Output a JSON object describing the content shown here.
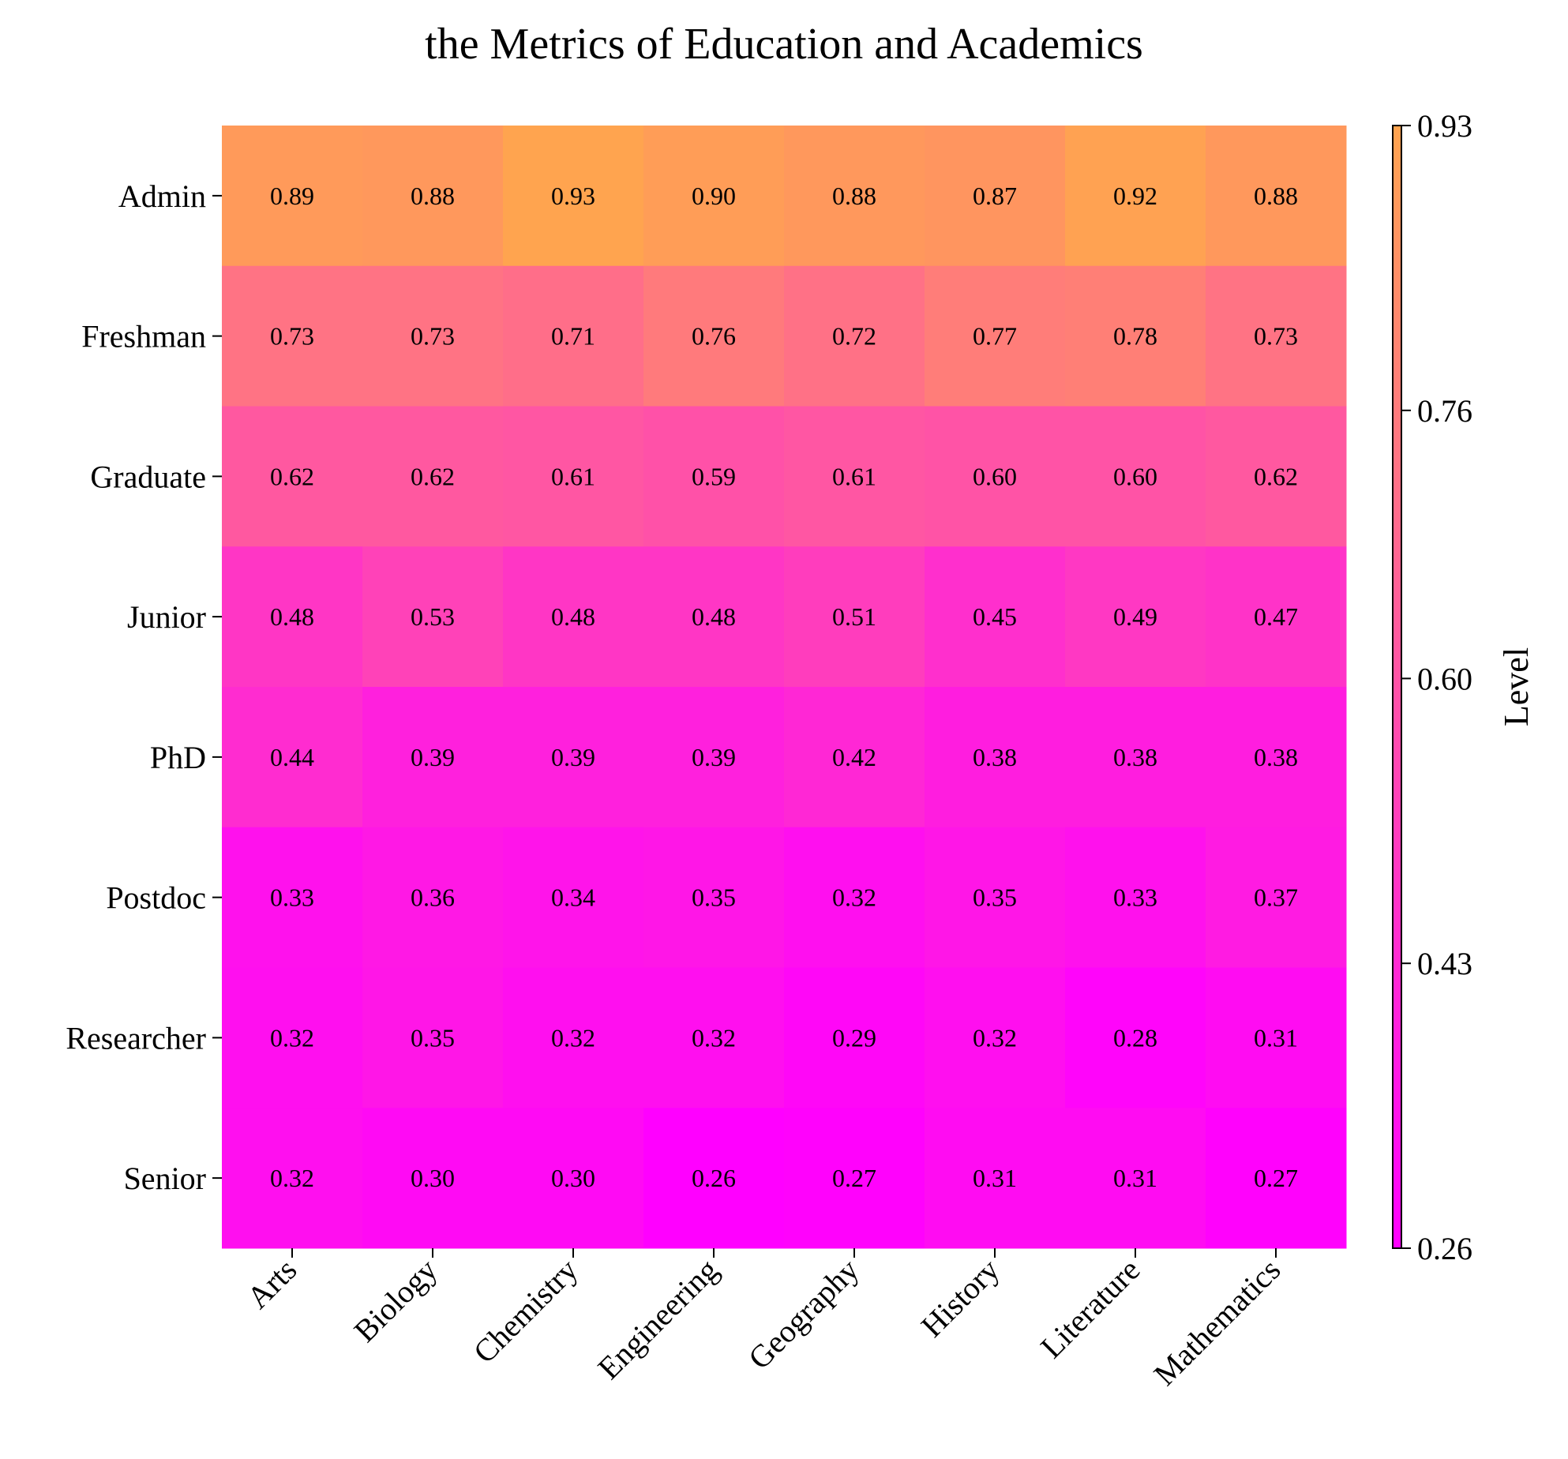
{
  "chart_data": {
    "type": "heatmap",
    "title": "the Metrics of Education and Academics",
    "xlabel": "",
    "ylabel": "",
    "x_categories": [
      "Arts",
      "Biology",
      "Chemistry",
      "Engineering",
      "Geography",
      "History",
      "Literature",
      "Mathematics"
    ],
    "y_categories": [
      "Admin",
      "Freshman",
      "Graduate",
      "Junior",
      "PhD",
      "Postdoc",
      "Researcher",
      "Senior"
    ],
    "values": [
      [
        0.89,
        0.88,
        0.93,
        0.9,
        0.88,
        0.87,
        0.92,
        0.88
      ],
      [
        0.73,
        0.73,
        0.71,
        0.76,
        0.72,
        0.77,
        0.78,
        0.73
      ],
      [
        0.62,
        0.62,
        0.61,
        0.59,
        0.61,
        0.6,
        0.6,
        0.62
      ],
      [
        0.48,
        0.53,
        0.48,
        0.48,
        0.51,
        0.45,
        0.49,
        0.47
      ],
      [
        0.44,
        0.39,
        0.39,
        0.39,
        0.42,
        0.38,
        0.38,
        0.38
      ],
      [
        0.33,
        0.36,
        0.34,
        0.35,
        0.32,
        0.35,
        0.33,
        0.37
      ],
      [
        0.32,
        0.35,
        0.32,
        0.32,
        0.29,
        0.32,
        0.28,
        0.31
      ],
      [
        0.32,
        0.3,
        0.3,
        0.26,
        0.27,
        0.31,
        0.31,
        0.27
      ]
    ],
    "value_format": "0.00",
    "colormap": {
      "low": "#ff00ff",
      "high": "#ffa44f"
    },
    "colorbar": {
      "label": "Level",
      "range": [
        0.26,
        0.93
      ],
      "ticks": [
        "0.93",
        "0.76",
        "0.60",
        "0.43",
        "0.26"
      ]
    },
    "grid": false,
    "legend": "colorbar-right"
  }
}
